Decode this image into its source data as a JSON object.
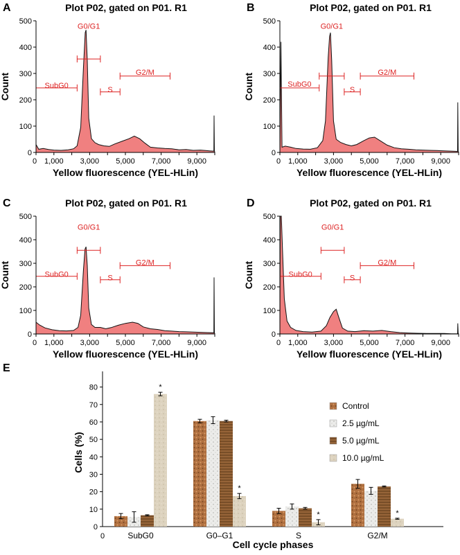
{
  "colors": {
    "gate": "#dd2222",
    "histogram_fill": "#f08080",
    "histogram_line": "#111111",
    "control": "#b07040",
    "dose_2_5": "#e4e4e0",
    "dose_5_0": "#8a5a30",
    "dose_10_0": "#ddd3bf"
  },
  "chart_data": [
    {
      "panel": "A",
      "type": "area",
      "title": "Plot P02, gated on P01. R1",
      "xlabel": "Yellow fluorescence (YEL-HLin)",
      "ylabel": "Count",
      "xlim": [
        0,
        10000
      ],
      "ylim": [
        0,
        500
      ],
      "xticks": [
        "0",
        "1,000",
        "3,000",
        "5,000",
        "7,000",
        "9,000"
      ],
      "yticks": [
        "0",
        "100",
        "200",
        "300",
        "400",
        "500"
      ],
      "gates": [
        {
          "label": "G0/G1",
          "x0": 2300,
          "x1": 3600,
          "y": 355,
          "label_y": 480
        },
        {
          "label": "SubG0",
          "x0": 0,
          "x1": 2300,
          "y": 245,
          "label_y": 255
        },
        {
          "label": "S",
          "x0": 3600,
          "x1": 4700,
          "y": 230,
          "label_y": 240
        },
        {
          "label": "G2/M",
          "x0": 4700,
          "x1": 7500,
          "y": 290,
          "label_y": 305
        }
      ],
      "histogram": [
        [
          0,
          30
        ],
        [
          150,
          12
        ],
        [
          400,
          15
        ],
        [
          700,
          11
        ],
        [
          1000,
          9
        ],
        [
          1400,
          8
        ],
        [
          1800,
          10
        ],
        [
          2100,
          14
        ],
        [
          2300,
          25
        ],
        [
          2500,
          95
        ],
        [
          2650,
          320
        ],
        [
          2750,
          455
        ],
        [
          2800,
          465
        ],
        [
          2870,
          350
        ],
        [
          2950,
          130
        ],
        [
          3100,
          52
        ],
        [
          3300,
          37
        ],
        [
          3500,
          30
        ],
        [
          3800,
          25
        ],
        [
          4100,
          23
        ],
        [
          4400,
          32
        ],
        [
          4800,
          42
        ],
        [
          5200,
          52
        ],
        [
          5500,
          62
        ],
        [
          5800,
          52
        ],
        [
          6100,
          35
        ],
        [
          6400,
          20
        ],
        [
          6800,
          17
        ],
        [
          7200,
          15
        ],
        [
          7600,
          14
        ],
        [
          8000,
          10
        ],
        [
          8400,
          11
        ],
        [
          8800,
          8
        ],
        [
          9200,
          9
        ],
        [
          9500,
          7
        ],
        [
          9700,
          6
        ],
        [
          9950,
          5
        ],
        [
          9960,
          140
        ],
        [
          9980,
          5
        ],
        [
          10000,
          2
        ]
      ]
    },
    {
      "panel": "B",
      "type": "area",
      "title": "Plot P02, gated on P01. R1",
      "xlabel": "Yellow fluorescence (YEL-HLin)",
      "ylabel": "Count",
      "xlim": [
        0,
        10000
      ],
      "ylim": [
        0,
        500
      ],
      "xticks": [
        "0",
        "1,000",
        "3,000",
        "5,000",
        "7,000",
        "9,000"
      ],
      "yticks": [
        "0",
        "100",
        "200",
        "300",
        "400",
        "500"
      ],
      "gates": [
        {
          "label": "G0/G1",
          "x0": 2200,
          "x1": 3600,
          "y": 290,
          "label_y": 480
        },
        {
          "label": "SubG0",
          "x0": 0,
          "x1": 2200,
          "y": 245,
          "label_y": 260
        },
        {
          "label": "S",
          "x0": 3600,
          "x1": 4500,
          "y": 230,
          "label_y": 240
        },
        {
          "label": "G2/M",
          "x0": 4500,
          "x1": 7500,
          "y": 290,
          "label_y": 305
        }
      ],
      "histogram": [
        [
          0,
          5
        ],
        [
          60,
          420
        ],
        [
          120,
          20
        ],
        [
          300,
          24
        ],
        [
          600,
          20
        ],
        [
          900,
          15
        ],
        [
          1300,
          13
        ],
        [
          1700,
          12
        ],
        [
          2100,
          18
        ],
        [
          2400,
          45
        ],
        [
          2550,
          120
        ],
        [
          2700,
          360
        ],
        [
          2780,
          440
        ],
        [
          2830,
          455
        ],
        [
          2900,
          350
        ],
        [
          3000,
          120
        ],
        [
          3150,
          50
        ],
        [
          3400,
          38
        ],
        [
          3700,
          30
        ],
        [
          4000,
          25
        ],
        [
          4300,
          30
        ],
        [
          4700,
          45
        ],
        [
          5000,
          55
        ],
        [
          5300,
          58
        ],
        [
          5600,
          45
        ],
        [
          6000,
          28
        ],
        [
          6400,
          18
        ],
        [
          6800,
          14
        ],
        [
          7200,
          12
        ],
        [
          7600,
          10
        ],
        [
          8000,
          9
        ],
        [
          8400,
          8
        ],
        [
          8800,
          7
        ],
        [
          9200,
          6
        ],
        [
          9600,
          5
        ],
        [
          9940,
          4
        ],
        [
          9955,
          190
        ],
        [
          9975,
          5
        ],
        [
          10000,
          2
        ]
      ]
    },
    {
      "panel": "C",
      "type": "area",
      "title": "Plot P02, gated on P01. R1",
      "xlabel": "Yellow fluorescence (YEL-HLin)",
      "ylabel": "Count",
      "xlim": [
        0,
        10000
      ],
      "ylim": [
        0,
        500
      ],
      "xticks": [
        "0",
        "1,000",
        "3,000",
        "5,000",
        "7,000",
        "9,000"
      ],
      "yticks": [
        "0",
        "100",
        "200",
        "300",
        "400",
        "500"
      ],
      "gates": [
        {
          "label": "G0/G1",
          "x0": 2300,
          "x1": 3600,
          "y": 355,
          "label_y": 455
        },
        {
          "label": "SubG0",
          "x0": 0,
          "x1": 2300,
          "y": 245,
          "label_y": 255
        },
        {
          "label": "S",
          "x0": 3600,
          "x1": 4700,
          "y": 230,
          "label_y": 240
        },
        {
          "label": "G2/M",
          "x0": 4700,
          "x1": 7500,
          "y": 290,
          "label_y": 305
        }
      ],
      "histogram": [
        [
          0,
          50
        ],
        [
          200,
          38
        ],
        [
          500,
          26
        ],
        [
          900,
          18
        ],
        [
          1300,
          14
        ],
        [
          1700,
          13
        ],
        [
          2100,
          15
        ],
        [
          2350,
          28
        ],
        [
          2500,
          80
        ],
        [
          2650,
          270
        ],
        [
          2740,
          360
        ],
        [
          2800,
          370
        ],
        [
          2870,
          290
        ],
        [
          2950,
          110
        ],
        [
          3100,
          40
        ],
        [
          3300,
          28
        ],
        [
          3600,
          28
        ],
        [
          3900,
          22
        ],
        [
          4200,
          27
        ],
        [
          4600,
          37
        ],
        [
          5000,
          45
        ],
        [
          5400,
          50
        ],
        [
          5700,
          45
        ],
        [
          6000,
          30
        ],
        [
          6400,
          22
        ],
        [
          6800,
          19
        ],
        [
          7200,
          14
        ],
        [
          7600,
          12
        ],
        [
          8000,
          10
        ],
        [
          8400,
          9
        ],
        [
          8800,
          8
        ],
        [
          9200,
          7
        ],
        [
          9600,
          6
        ],
        [
          9950,
          5
        ],
        [
          9960,
          240
        ],
        [
          9980,
          5
        ],
        [
          10000,
          2
        ]
      ]
    },
    {
      "panel": "D",
      "type": "area",
      "title": "Plot P02, gated on P01. R1",
      "xlabel": "Yellow fluorescence (YEL-HLin)",
      "ylabel": "Count",
      "xlim": [
        0,
        10000
      ],
      "ylim": [
        0,
        500
      ],
      "xticks": [
        "0",
        "1,000",
        "3,000",
        "5,000",
        "7,000",
        "9,000"
      ],
      "yticks": [
        "0",
        "100",
        "200",
        "300",
        "400",
        "500"
      ],
      "gates": [
        {
          "label": "G0/G1",
          "x0": 2300,
          "x1": 3600,
          "y": 355,
          "label_y": 455
        },
        {
          "label": "SubG0",
          "x0": 0,
          "x1": 2300,
          "y": 245,
          "label_y": 255
        },
        {
          "label": "S",
          "x0": 3600,
          "x1": 4500,
          "y": 230,
          "label_y": 240
        },
        {
          "label": "G2/M",
          "x0": 4500,
          "x1": 7500,
          "y": 290,
          "label_y": 305
        }
      ],
      "histogram": [
        [
          0,
          5
        ],
        [
          20,
          500
        ],
        [
          80,
          500
        ],
        [
          150,
          350
        ],
        [
          250,
          150
        ],
        [
          400,
          55
        ],
        [
          600,
          28
        ],
        [
          900,
          15
        ],
        [
          1300,
          10
        ],
        [
          1800,
          8
        ],
        [
          2300,
          12
        ],
        [
          2600,
          35
        ],
        [
          2800,
          70
        ],
        [
          3000,
          95
        ],
        [
          3150,
          105
        ],
        [
          3300,
          70
        ],
        [
          3500,
          25
        ],
        [
          3800,
          12
        ],
        [
          4200,
          10
        ],
        [
          4700,
          14
        ],
        [
          5200,
          12
        ],
        [
          5700,
          15
        ],
        [
          6200,
          10
        ],
        [
          6700,
          6
        ],
        [
          7200,
          4
        ],
        [
          7700,
          3
        ],
        [
          8200,
          2
        ],
        [
          8700,
          2
        ],
        [
          9200,
          2
        ],
        [
          9600,
          1
        ],
        [
          9940,
          1
        ],
        [
          9955,
          45
        ],
        [
          9975,
          2
        ],
        [
          10000,
          1
        ]
      ]
    },
    {
      "panel": "E",
      "type": "bar",
      "xlabel": "Cell cycle phases",
      "ylabel": "Cells (%)",
      "ylim": [
        0,
        85
      ],
      "yticks": [
        "0",
        "10",
        "20",
        "30",
        "40",
        "50",
        "60",
        "70",
        "80"
      ],
      "x_origin_label": "0",
      "categories": [
        "SubG0",
        "G0–G1",
        "S",
        "G2/M"
      ],
      "series": [
        {
          "name": "Control",
          "values": [
            6,
            60.5,
            9,
            24.5
          ],
          "errors": [
            1.5,
            1,
            1.5,
            2.5
          ]
        },
        {
          "name": "2.5 µg/mL",
          "values": [
            5.5,
            61,
            11.5,
            20.5
          ],
          "errors": [
            3,
            2,
            1.5,
            2
          ]
        },
        {
          "name": "5.0 µg/mL",
          "values": [
            6.5,
            60.5,
            10.5,
            23
          ],
          "errors": [
            0.3,
            0.5,
            0.5,
            0.3
          ]
        },
        {
          "name": "10.0 µg/mL",
          "values": [
            76,
            17.5,
            2.5,
            4.5
          ],
          "errors": [
            1,
            1.5,
            1.5,
            0.3
          ]
        }
      ],
      "significance": [
        {
          "series": 3,
          "category": 0,
          "mark": "*"
        },
        {
          "series": 3,
          "category": 1,
          "mark": "*"
        },
        {
          "series": 3,
          "category": 2,
          "mark": "*"
        },
        {
          "series": 3,
          "category": 3,
          "mark": "*"
        }
      ]
    }
  ]
}
